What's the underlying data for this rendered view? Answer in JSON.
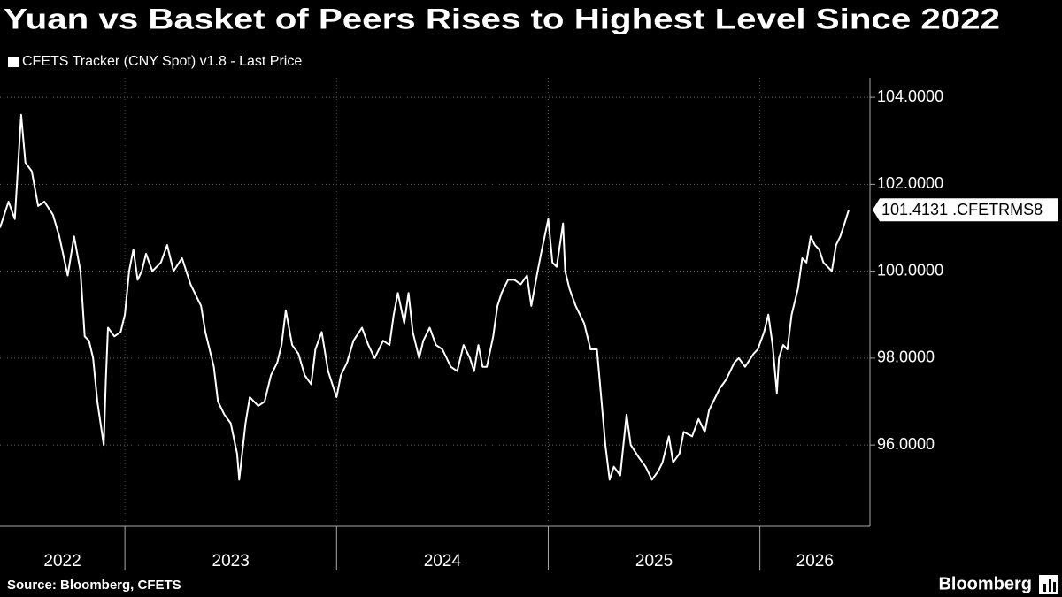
{
  "chart_data": {
    "type": "line",
    "title": "Yuan vs Basket of Peers Rises to Highest Level Since 2022",
    "source": "Source: Bloomberg, CFETS",
    "brand": "Bloomberg",
    "annotation": "101.4131 .CFETRMS8",
    "x": [
      2022.41,
      2022.45,
      2022.48,
      2022.51,
      2022.53,
      2022.56,
      2022.59,
      2022.62,
      2022.66,
      2022.69,
      2022.73,
      2022.76,
      2022.79,
      2022.81,
      2022.83,
      2022.85,
      2022.87,
      2022.9,
      2022.91,
      2022.92,
      2022.95,
      2022.98,
      2023.0,
      2023.02,
      2023.04,
      2023.06,
      2023.08,
      2023.1,
      2023.13,
      2023.17,
      2023.2,
      2023.23,
      2023.27,
      2023.31,
      2023.36,
      2023.38,
      2023.42,
      2023.44,
      2023.47,
      2023.5,
      2023.53,
      2023.54,
      2023.57,
      2023.59,
      2023.63,
      2023.66,
      2023.69,
      2023.72,
      2023.74,
      2023.76,
      2023.79,
      2023.82,
      2023.85,
      2023.88,
      2023.9,
      2023.93,
      2023.96,
      2024.0,
      2024.02,
      2024.05,
      2024.08,
      2024.12,
      2024.15,
      2024.18,
      2024.22,
      2024.25,
      2024.27,
      2024.29,
      2024.32,
      2024.34,
      2024.36,
      2024.39,
      2024.41,
      2024.44,
      2024.47,
      2024.5,
      2024.54,
      2024.57,
      2024.6,
      2024.63,
      2024.65,
      2024.67,
      2024.69,
      2024.71,
      2024.74,
      2024.76,
      2024.78,
      2024.81,
      2024.84,
      2024.87,
      2024.9,
      2024.92,
      2024.95,
      2024.97,
      2025.0,
      2025.02,
      2025.04,
      2025.07,
      2025.08,
      2025.1,
      2025.13,
      2025.17,
      2025.2,
      2025.23,
      2025.25,
      2025.27,
      2025.29,
      2025.31,
      2025.34,
      2025.37,
      2025.39,
      2025.43,
      2025.46,
      2025.49,
      2025.52,
      2025.54,
      2025.57,
      2025.59,
      2025.62,
      2025.64,
      2025.68,
      2025.71,
      2025.74,
      2025.76,
      2025.78,
      2025.81,
      2025.84,
      2025.88,
      2025.9,
      2025.93,
      2025.97,
      2025.99,
      2026.02,
      2026.04,
      2026.06,
      2026.08,
      2026.09,
      2026.11,
      2026.13,
      2026.15,
      2026.18,
      2026.2,
      2026.22,
      2026.24,
      2026.26,
      2026.28,
      2026.3,
      2026.32,
      2026.34,
      2026.36,
      2026.38,
      2026.4,
      2026.42
    ],
    "series": [
      {
        "name": "CFETS Tracker (CNY Spot) v1.8 - Last Price",
        "color": "#ffffff",
        "values": [
          101.0,
          101.6,
          101.2,
          103.6,
          102.5,
          102.3,
          101.5,
          101.6,
          101.3,
          100.8,
          99.9,
          100.8,
          100.0,
          98.5,
          98.4,
          98.0,
          97.0,
          96.0,
          97.5,
          98.7,
          98.5,
          98.6,
          99.0,
          100.0,
          100.5,
          99.8,
          100.0,
          100.4,
          100.0,
          100.2,
          100.6,
          100.0,
          100.3,
          99.7,
          99.2,
          98.6,
          97.8,
          97.0,
          96.7,
          96.5,
          95.8,
          95.2,
          96.5,
          97.1,
          96.9,
          97.0,
          97.6,
          97.9,
          98.3,
          99.1,
          98.3,
          98.1,
          97.6,
          97.4,
          98.2,
          98.6,
          97.7,
          97.1,
          97.6,
          97.9,
          98.4,
          98.7,
          98.3,
          98.0,
          98.4,
          98.3,
          99.0,
          99.5,
          98.8,
          99.5,
          98.6,
          98.0,
          98.4,
          98.7,
          98.3,
          98.2,
          97.8,
          97.7,
          98.3,
          98.0,
          97.7,
          98.3,
          97.8,
          97.8,
          98.5,
          99.2,
          99.5,
          99.8,
          99.8,
          99.7,
          99.9,
          99.2,
          100.0,
          100.5,
          101.2,
          100.2,
          100.1,
          101.1,
          100.0,
          99.6,
          99.2,
          98.8,
          98.2,
          98.2,
          97.1,
          96.0,
          95.2,
          95.5,
          95.3,
          96.7,
          96.0,
          95.7,
          95.5,
          95.2,
          95.4,
          95.6,
          96.2,
          95.6,
          95.8,
          96.3,
          96.2,
          96.6,
          96.3,
          96.8,
          97.0,
          97.3,
          97.5,
          97.9,
          98.0,
          97.8,
          98.1,
          98.2,
          98.6,
          99.0,
          98.3,
          97.2,
          98.0,
          98.3,
          98.2,
          99.0,
          99.6,
          100.3,
          100.2,
          100.8,
          100.6,
          100.5,
          100.2,
          100.1,
          100.0,
          100.6,
          100.8,
          101.1,
          101.4131
        ]
      }
    ],
    "xlim": [
      2022.41,
      2026.52
    ],
    "xticks": [
      2022,
      2023,
      2024,
      2025,
      2026
    ],
    "ylim": [
      94.13,
      104.45
    ],
    "yticks": [
      {
        "value": 96,
        "label": "96.0000"
      },
      {
        "value": 98,
        "label": "98.0000"
      },
      {
        "value": 100,
        "label": "100.0000"
      },
      {
        "value": 102,
        "label": "102.0000"
      },
      {
        "value": 104,
        "label": "104.0000"
      }
    ],
    "grid": true,
    "legend": "top-left"
  }
}
